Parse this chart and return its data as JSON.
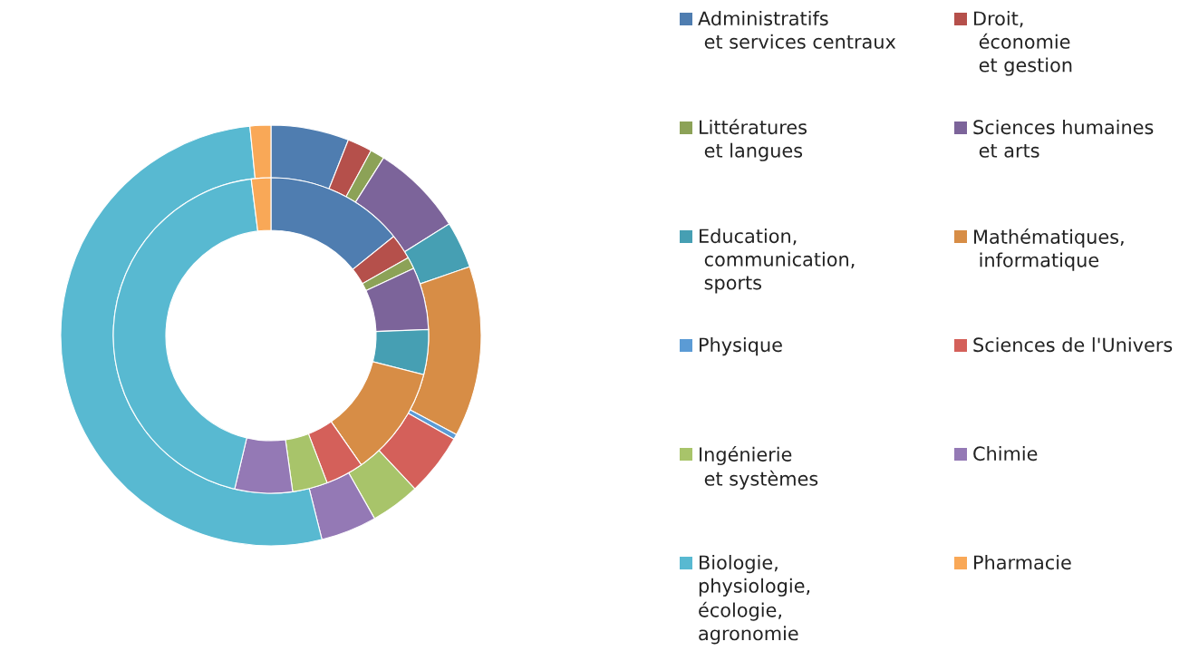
{
  "chart_data": {
    "type": "donut",
    "categories": [
      "Administratifs\n et services centraux",
      "Droit,\n économie\n et gestion",
      "Littératures\n et langues",
      "Sciences humaines\n et arts",
      "Education,\n communication,\n sports",
      "Mathématiques,\n informatique",
      "Physique",
      "Sciences de l'Univers",
      "Ingénierie\n et systèmes",
      "Chimie",
      "Biologie,\nphysiologie,\nécologie,\nagronomie",
      "Pharmacie"
    ],
    "colors": [
      "#4f7db0",
      "#b5504b",
      "#8ca257",
      "#7c649a",
      "#469fb3",
      "#d78d46",
      "#5b9bd5",
      "#d4605a",
      "#a8c46a",
      "#9479b5",
      "#58b9d1",
      "#f9a857"
    ],
    "series": [
      {
        "values": [
          6.0,
          1.9,
          1.1,
          7.1,
          3.6,
          13.1,
          0.4,
          4.8,
          3.8,
          4.3,
          52.3,
          1.6
        ]
      },
      {
        "values": [
          14.2,
          2.6,
          1.2,
          6.4,
          4.6,
          11.3,
          0,
          3.9,
          3.6,
          5.9,
          44.3,
          2.0
        ]
      }
    ],
    "legend": "right"
  }
}
